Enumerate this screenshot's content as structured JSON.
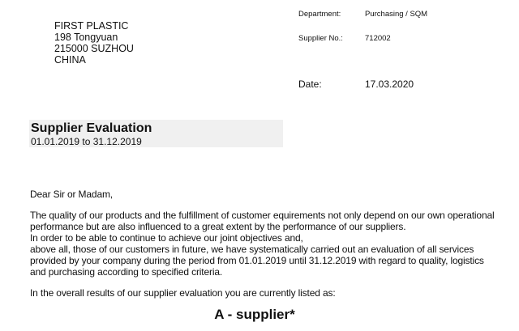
{
  "recipient": {
    "lines": [
      "FIRST PLASTIC",
      "198 Tongyuan",
      "215000 SUZHOU",
      "CHINA"
    ]
  },
  "meta": {
    "department_label": "Department:",
    "department_value": "Purchasing / SQM",
    "supplier_no_label": "Supplier No.:",
    "supplier_no_value": "712002",
    "date_label": "Date:",
    "date_value": "17.03.2020"
  },
  "heading": {
    "title": "Supplier Evaluation",
    "period": "01.01.2019 to 31.12.2019"
  },
  "letter": {
    "salutation": "Dear Sir or Madam,",
    "paragraph_lines": [
      "The quality of our products and the fulfillment of customer equirements not only depend on our own operational",
      "performance but are also influenced to a great extent by the performance of our suppliers.",
      "In order to be able to continue to achieve our joint objectives and,",
      "above all, those of our customers in future, we have systematically carried out an evaluation of all services",
      "provided by your company during the period from 01.01.2019 until 31.12.2019 with regard to quality, logistics",
      "and purchasing according to specified criteria."
    ],
    "result_intro": "In the overall results of our supplier evaluation you are currently listed as:",
    "grade": "A - supplier*"
  }
}
